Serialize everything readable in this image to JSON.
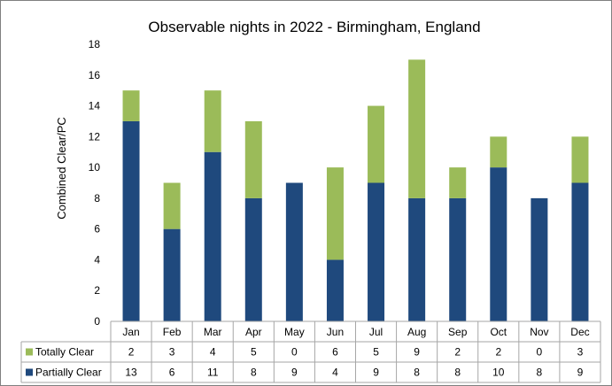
{
  "chart_data": {
    "type": "bar",
    "stacked": true,
    "title": "Observable nights in 2022 - Birmingham, England",
    "xlabel": "",
    "ylabel": "Combined Clear/PC",
    "ylim": [
      0,
      18
    ],
    "yticks": [
      0,
      2,
      4,
      6,
      8,
      10,
      12,
      14,
      16,
      18
    ],
    "grid": false,
    "legend": "data-table",
    "categories": [
      "Jan",
      "Feb",
      "Mar",
      "Apr",
      "May",
      "Jun",
      "Jul",
      "Aug",
      "Sep",
      "Oct",
      "Nov",
      "Dec"
    ],
    "series": [
      {
        "name": "Partially Clear",
        "color": "#1f497d",
        "values": [
          13,
          6,
          11,
          8,
          9,
          4,
          9,
          8,
          8,
          10,
          8,
          9
        ]
      },
      {
        "name": "Totally Clear",
        "color": "#9bbb59",
        "values": [
          2,
          3,
          4,
          5,
          0,
          6,
          5,
          9,
          2,
          2,
          0,
          3
        ]
      }
    ],
    "table_row_order": [
      "Totally Clear",
      "Partially Clear"
    ]
  }
}
